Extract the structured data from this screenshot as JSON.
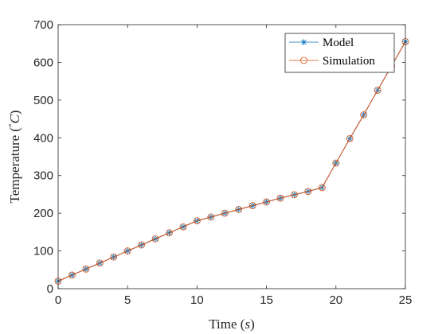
{
  "chart_data": {
    "type": "line",
    "xlabel": "Time (",
    "xlabel_var": "s",
    "xlabel_end": ")",
    "ylabel": "Temperature (",
    "ylabel_unit_prefix": "°",
    "ylabel_var": "C",
    "ylabel_end": ")",
    "xlim": [
      0,
      25
    ],
    "ylim": [
      0,
      700
    ],
    "xticks": [
      0,
      5,
      10,
      15,
      20,
      25
    ],
    "yticks": [
      0,
      100,
      200,
      300,
      400,
      500,
      600,
      700
    ],
    "grid": false,
    "legend_position": "top-right",
    "x": [
      0,
      1,
      2,
      3,
      4,
      5,
      6,
      7,
      8,
      9,
      10,
      11,
      12,
      13,
      14,
      15,
      16,
      17,
      18,
      19,
      20,
      21,
      22,
      23,
      24,
      25
    ],
    "series": [
      {
        "name": "Model",
        "marker": "asterisk",
        "color": "#0072BD",
        "values": [
          20,
          36,
          52,
          68,
          84,
          100,
          116,
          132,
          148,
          164,
          180,
          190,
          200,
          210,
          220,
          230,
          240,
          249,
          258,
          268,
          333,
          398,
          461,
          526,
          590,
          655
        ]
      },
      {
        "name": "Simulation",
        "marker": "circle",
        "color": "#D95319",
        "values": [
          20,
          36,
          52,
          68,
          84,
          100,
          116,
          132,
          148,
          164,
          180,
          190,
          200,
          210,
          220,
          230,
          240,
          249,
          258,
          268,
          333,
          398,
          461,
          526,
          590,
          655
        ]
      }
    ]
  }
}
